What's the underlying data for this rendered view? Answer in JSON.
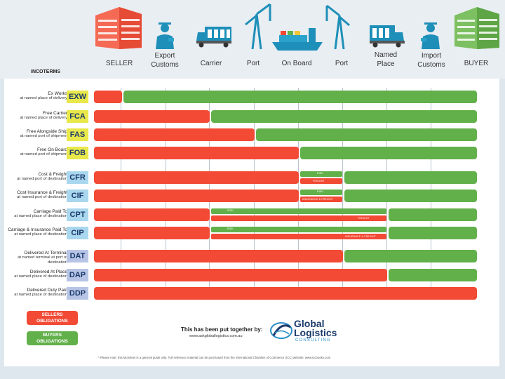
{
  "header": {
    "labels": [
      "SELLER",
      "Export\nCustoms",
      "Carrier",
      "Port",
      "On Board",
      "Port",
      "Named\nPlace",
      "Import\nCustoms",
      "BUYER"
    ]
  },
  "incoterms_title": "INCOTERMS",
  "rows": [
    {
      "name": "Ex Works",
      "sub": "at named place of delivery",
      "code": "EXW"
    },
    {
      "name": "Free Carrier",
      "sub": "at named place of delivery",
      "code": "FCA"
    },
    {
      "name": "Free Alongside Ship",
      "sub": "at named port of shipment",
      "code": "FAS"
    },
    {
      "name": "Free On Board",
      "sub": "at named port of shipment",
      "code": "FOB"
    },
    {
      "name": "Cost & Freight",
      "sub": "at named port of destination",
      "code": "CFR"
    },
    {
      "name": "Cost Insurance & Freight",
      "sub": "at named port of destination",
      "code": "CIF"
    },
    {
      "name": "Carriage Paid To",
      "sub": "at named place of destination",
      "code": "CPT"
    },
    {
      "name": "Carriage & Insurance Paid To",
      "sub": "at named place of destination",
      "code": "CIP"
    },
    {
      "name": "Delivered At Terminal",
      "sub": "at named terminal at port of destination",
      "code": "DAT"
    },
    {
      "name": "Delivered At Place",
      "sub": "at named place of destination",
      "code": "DAP"
    },
    {
      "name": "Delivered Duty Paid",
      "sub": "at named place of destination",
      "code": "DDP"
    }
  ],
  "sub_labels": {
    "risk": "RISK",
    "freight": "FREIGHT",
    "insurance_freight": "INSURANCE & FREIGHT"
  },
  "legend": {
    "sellers": "SELLERS\nOBLIGATIONS",
    "buyers": "BUYERS\nOBLIGATIONS"
  },
  "credit": {
    "line": "This has been put together by:",
    "url": "www.askgloballogistics.com.au",
    "logo_main": "Global\nLogistics",
    "logo_sub": "CONSULTING"
  },
  "footnote": "* Please note: this factsheet is a general guide only. Full reference material can be purchased from the International Chamber of Commerce (ICC) website: www.iccbooks.com",
  "colors": {
    "seller_red": "#f24a35",
    "buyer_green": "#62b04a"
  }
}
